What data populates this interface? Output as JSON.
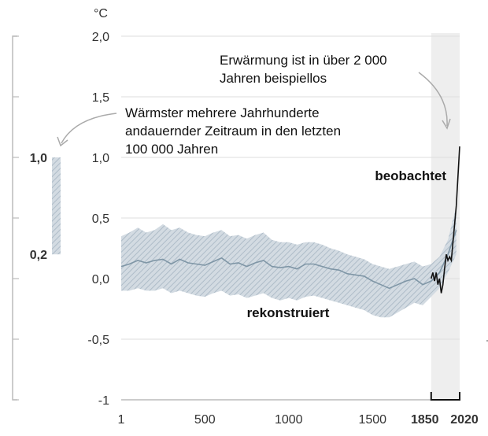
{
  "chart_data": {
    "type": "line",
    "unit": "°C",
    "y_ticks": [
      "2,0",
      "1,5",
      "1,0",
      "0,5",
      "0,0",
      "-0,5",
      "-1"
    ],
    "y_tick_values": [
      2.0,
      1.5,
      1.0,
      0.5,
      0.0,
      -0.5,
      -1.0
    ],
    "ylim": [
      -1.0,
      2.0
    ],
    "x_ticks": [
      "1",
      "500",
      "1000",
      "1500"
    ],
    "x_tick_values": [
      1,
      500,
      1000,
      1500
    ],
    "x_ticks_bold": [
      "1850",
      "2020"
    ],
    "x_ticks_bold_values": [
      1850,
      2020
    ],
    "xlim": [
      1,
      2020
    ],
    "grid": true,
    "recent_period_shading": [
      1850,
      2020
    ],
    "series": [
      {
        "name": "rekonstruiert",
        "color": "#7f96a6",
        "band_color": "#b9c6d1",
        "x": [
          1,
          50,
          100,
          150,
          200,
          250,
          300,
          350,
          400,
          450,
          500,
          550,
          600,
          650,
          700,
          750,
          800,
          850,
          900,
          950,
          1000,
          1050,
          1100,
          1150,
          1200,
          1250,
          1300,
          1350,
          1400,
          1450,
          1500,
          1550,
          1600,
          1650,
          1700,
          1750,
          1800,
          1850,
          1900,
          1950,
          2000
        ],
        "y": [
          0.1,
          0.12,
          0.15,
          0.13,
          0.15,
          0.16,
          0.12,
          0.16,
          0.13,
          0.12,
          0.11,
          0.14,
          0.17,
          0.12,
          0.13,
          0.1,
          0.13,
          0.15,
          0.1,
          0.09,
          0.1,
          0.08,
          0.12,
          0.12,
          0.1,
          0.08,
          0.07,
          0.04,
          0.03,
          0.02,
          -0.02,
          -0.05,
          -0.08,
          -0.05,
          -0.02,
          0.0,
          -0.05,
          -0.02,
          0.05,
          0.2,
          0.4
        ],
        "band_upper": [
          0.35,
          0.38,
          0.42,
          0.38,
          0.4,
          0.45,
          0.4,
          0.42,
          0.38,
          0.36,
          0.35,
          0.38,
          0.4,
          0.35,
          0.36,
          0.33,
          0.36,
          0.38,
          0.32,
          0.3,
          0.3,
          0.28,
          0.3,
          0.3,
          0.28,
          0.25,
          0.23,
          0.2,
          0.18,
          0.16,
          0.12,
          0.1,
          0.08,
          0.1,
          0.12,
          0.14,
          0.1,
          0.12,
          0.18,
          0.32,
          0.6
        ],
        "band_lower": [
          -0.1,
          -0.1,
          -0.08,
          -0.1,
          -0.1,
          -0.08,
          -0.12,
          -0.1,
          -0.12,
          -0.14,
          -0.15,
          -0.12,
          -0.1,
          -0.14,
          -0.13,
          -0.16,
          -0.14,
          -0.12,
          -0.16,
          -0.18,
          -0.16,
          -0.18,
          -0.15,
          -0.14,
          -0.16,
          -0.18,
          -0.2,
          -0.22,
          -0.24,
          -0.26,
          -0.3,
          -0.32,
          -0.32,
          -0.28,
          -0.24,
          -0.2,
          -0.22,
          -0.15,
          -0.08,
          0.05,
          0.2
        ]
      },
      {
        "name": "beobachtet",
        "color": "#111111",
        "x": [
          1850,
          1860,
          1870,
          1880,
          1890,
          1900,
          1910,
          1920,
          1930,
          1940,
          1950,
          1960,
          1970,
          1980,
          1990,
          2000,
          2010,
          2020
        ],
        "y": [
          0.0,
          0.05,
          -0.02,
          0.05,
          -0.05,
          0.0,
          -0.12,
          -0.05,
          0.08,
          0.2,
          0.15,
          0.18,
          0.15,
          0.3,
          0.45,
          0.6,
          0.85,
          1.09
        ]
      }
    ],
    "side_bar": {
      "labels": [
        "1,0",
        "0,2"
      ],
      "range": [
        0.2,
        1.0
      ],
      "color": "#7f96a6"
    },
    "annotations": [
      {
        "lines": [
          "Erwärmung ist in über 2 000",
          "Jahren beispiellos"
        ]
      },
      {
        "lines": [
          "Wärmster mehrere Jahrhunderte",
          "andauernder Zeitraum in den letzten",
          "100 000 Jahren"
        ]
      }
    ]
  }
}
